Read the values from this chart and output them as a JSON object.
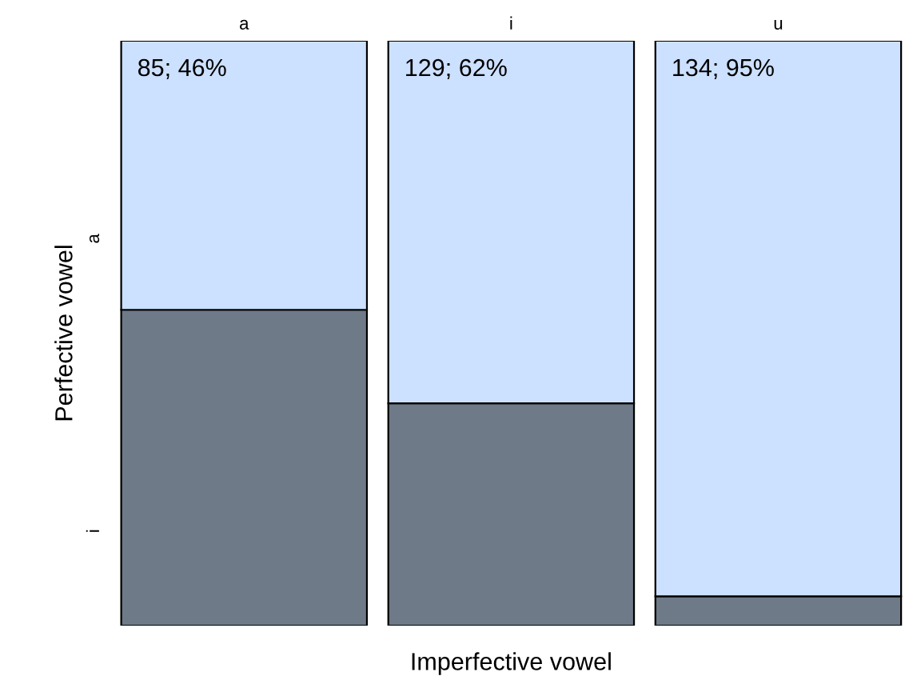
{
  "chart_data": {
    "type": "bar",
    "stacked": true,
    "xlabel": "Imperfective vowel",
    "ylabel": "Perfective vowel",
    "categories": [
      "a",
      "i",
      "u"
    ],
    "series": [
      {
        "name": "i",
        "color": "#6e7a87",
        "values": [
          54,
          38,
          5
        ]
      },
      {
        "name": "a",
        "color": "#cce0ff",
        "values": [
          46,
          62,
          95
        ],
        "value_labels": [
          "85; 46%",
          "129; 62%",
          "134; 95%"
        ]
      }
    ]
  }
}
